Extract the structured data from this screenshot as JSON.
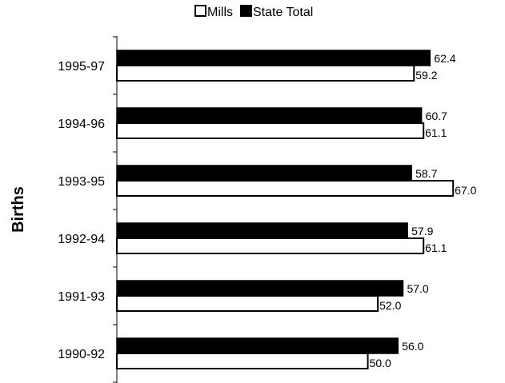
{
  "chart_data": {
    "type": "bar",
    "orientation": "horizontal",
    "categories": [
      "1995-97",
      "1994-96",
      "1993-95",
      "1992-94",
      "1991-93",
      "1990-92"
    ],
    "series": [
      {
        "name": "State Total",
        "values": [
          62.4,
          60.7,
          58.7,
          57.9,
          57.0,
          56.0
        ],
        "color": "#000000"
      },
      {
        "name": "Mills",
        "values": [
          59.2,
          61.1,
          67.0,
          61.1,
          52.0,
          50.0
        ],
        "color": "#ffffff"
      }
    ],
    "value_labels": {
      "State Total": [
        "62.4",
        "60.7",
        "58.7",
        "57.9",
        "57.0",
        "56.0"
      ],
      "Mills": [
        "59.2",
        "61.1",
        "67.0",
        "61.1",
        "52.0",
        "50.0"
      ]
    },
    "legend_items": [
      {
        "name": "Mills",
        "swatch": "#ffffff"
      },
      {
        "name": "State Total",
        "swatch": "#000000"
      }
    ],
    "ylabel": "Births",
    "xlim": [
      0,
      70
    ],
    "legend_position": "top-center",
    "grid": false
  }
}
